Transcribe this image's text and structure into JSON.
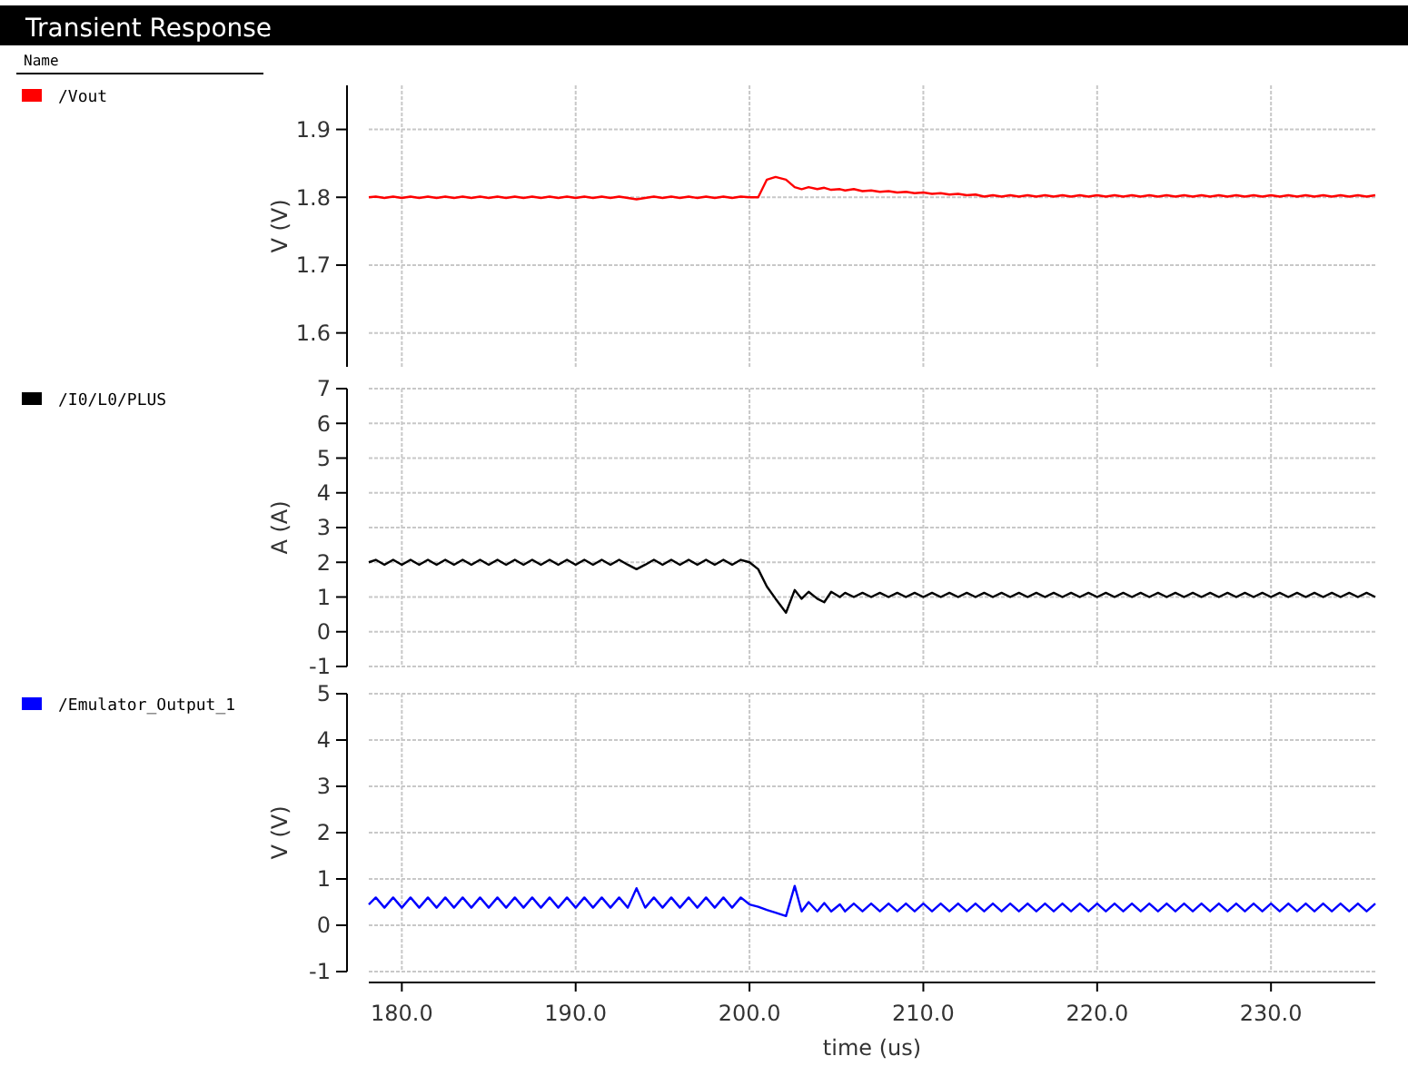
{
  "chart_data": [
    {
      "type": "line",
      "title": "Transient Response",
      "legend_title": "Name",
      "ylabel": "V (V)",
      "legend": "left",
      "grid": true,
      "tick_labels": "y",
      "xlim": [
        178.1,
        236
      ],
      "xticks": [
        180,
        190,
        200,
        210,
        220,
        230
      ],
      "ylim": [
        1.55,
        1.965
      ],
      "yticks": [
        1.6,
        1.7,
        1.8,
        1.9
      ],
      "x": [
        178.1,
        178.5,
        179,
        179.5,
        180,
        180.5,
        181,
        181.5,
        182,
        182.5,
        183,
        183.5,
        184,
        184.5,
        185,
        185.5,
        186,
        186.5,
        187,
        187.5,
        188,
        188.5,
        189,
        189.5,
        190,
        190.5,
        191,
        191.5,
        192,
        192.5,
        193,
        193.5,
        194,
        194.5,
        195,
        195.5,
        196,
        196.5,
        197,
        197.5,
        198,
        198.5,
        199,
        199.5,
        200,
        200.5,
        201,
        201.5,
        202.1,
        202.6,
        203,
        203.4,
        203.9,
        204.3,
        204.7,
        205.2,
        205.5,
        206,
        206.5,
        207,
        207.5,
        208,
        208.5,
        209,
        209.5,
        210,
        210.5,
        211,
        211.5,
        212,
        212.5,
        213,
        213.5,
        214,
        214.5,
        215,
        215.5,
        216,
        216.5,
        217,
        217.5,
        218,
        218.5,
        219,
        219.5,
        220,
        220.5,
        221,
        221.5,
        222,
        222.5,
        223,
        223.5,
        224,
        224.5,
        225,
        225.5,
        226,
        226.5,
        227,
        227.5,
        228,
        228.5,
        229,
        229.5,
        230,
        230.5,
        231,
        231.5,
        232,
        232.5,
        233,
        233.5,
        234,
        234.5,
        235,
        235.5,
        236
      ],
      "series": [
        {
          "name": "/Vout",
          "color": "#ff0000",
          "values": [
            1.8,
            1.801,
            1.799,
            1.801,
            1.799,
            1.801,
            1.799,
            1.801,
            1.799,
            1.801,
            1.799,
            1.801,
            1.799,
            1.801,
            1.799,
            1.801,
            1.799,
            1.801,
            1.799,
            1.801,
            1.799,
            1.801,
            1.799,
            1.801,
            1.799,
            1.801,
            1.799,
            1.801,
            1.799,
            1.801,
            1.799,
            1.797,
            1.799,
            1.801,
            1.799,
            1.801,
            1.799,
            1.801,
            1.799,
            1.801,
            1.799,
            1.801,
            1.799,
            1.801,
            1.8,
            1.8,
            1.826,
            1.83,
            1.826,
            1.815,
            1.812,
            1.815,
            1.812,
            1.814,
            1.811,
            1.812,
            1.81,
            1.812,
            1.809,
            1.81,
            1.808,
            1.809,
            1.807,
            1.808,
            1.806,
            1.807,
            1.805,
            1.806,
            1.804,
            1.805,
            1.803,
            1.804,
            1.801,
            1.803,
            1.801,
            1.803,
            1.801,
            1.803,
            1.801,
            1.803,
            1.801,
            1.803,
            1.801,
            1.803,
            1.801,
            1.803,
            1.801,
            1.803,
            1.801,
            1.803,
            1.801,
            1.803,
            1.801,
            1.803,
            1.801,
            1.803,
            1.801,
            1.803,
            1.801,
            1.803,
            1.801,
            1.803,
            1.801,
            1.803,
            1.801,
            1.803,
            1.801,
            1.803,
            1.801,
            1.803,
            1.801,
            1.803,
            1.801,
            1.803,
            1.801,
            1.803,
            1.801,
            1.803
          ]
        }
      ]
    },
    {
      "type": "line",
      "ylabel": "A (A)",
      "legend": "left",
      "grid": true,
      "tick_labels": "y",
      "xlim": [
        178.1,
        236
      ],
      "xticks": [
        180,
        190,
        200,
        210,
        220,
        230
      ],
      "ylim": [
        -1,
        7
      ],
      "yticks": [
        -1,
        0,
        1,
        2,
        3,
        4,
        5,
        6,
        7
      ],
      "x": [
        178.1,
        178.5,
        179,
        179.5,
        180,
        180.5,
        181,
        181.5,
        182,
        182.5,
        183,
        183.5,
        184,
        184.5,
        185,
        185.5,
        186,
        186.5,
        187,
        187.5,
        188,
        188.5,
        189,
        189.5,
        190,
        190.5,
        191,
        191.5,
        192,
        192.5,
        193,
        193.5,
        194,
        194.5,
        195,
        195.5,
        196,
        196.5,
        197,
        197.5,
        198,
        198.5,
        199,
        199.5,
        200,
        200.5,
        201,
        201.5,
        202.1,
        202.6,
        203,
        203.4,
        203.9,
        204.3,
        204.7,
        205.2,
        205.5,
        206,
        206.5,
        207,
        207.5,
        208,
        208.5,
        209,
        209.5,
        210,
        210.5,
        211,
        211.5,
        212,
        212.5,
        213,
        213.5,
        214,
        214.5,
        215,
        215.5,
        216,
        216.5,
        217,
        217.5,
        218,
        218.5,
        219,
        219.5,
        220,
        220.5,
        221,
        221.5,
        222,
        222.5,
        223,
        223.5,
        224,
        224.5,
        225,
        225.5,
        226,
        226.5,
        227,
        227.5,
        228,
        228.5,
        229,
        229.5,
        230,
        230.5,
        231,
        231.5,
        232,
        232.5,
        233,
        233.5,
        234,
        234.5,
        235,
        235.5,
        236
      ],
      "series": [
        {
          "name": "/I0/L0/PLUS",
          "color": "#000000",
          "values": [
            2.0,
            2.07,
            1.93,
            2.07,
            1.93,
            2.07,
            1.93,
            2.07,
            1.93,
            2.07,
            1.93,
            2.07,
            1.93,
            2.07,
            1.93,
            2.07,
            1.93,
            2.07,
            1.93,
            2.07,
            1.93,
            2.07,
            1.93,
            2.07,
            1.93,
            2.07,
            1.93,
            2.07,
            1.93,
            2.07,
            1.93,
            1.8,
            1.93,
            2.07,
            1.93,
            2.07,
            1.93,
            2.07,
            1.93,
            2.07,
            1.93,
            2.07,
            1.93,
            2.07,
            2.0,
            1.8,
            1.3,
            0.95,
            0.55,
            1.2,
            0.95,
            1.15,
            0.95,
            0.85,
            1.15,
            1.0,
            1.12,
            1.0,
            1.12,
            1.0,
            1.12,
            1.0,
            1.12,
            1.0,
            1.12,
            1.0,
            1.12,
            1.0,
            1.12,
            1.0,
            1.12,
            1.0,
            1.12,
            1.0,
            1.12,
            1.0,
            1.12,
            1.0,
            1.12,
            1.0,
            1.12,
            1.0,
            1.12,
            1.0,
            1.12,
            1.0,
            1.12,
            1.0,
            1.12,
            1.0,
            1.12,
            1.0,
            1.12,
            1.0,
            1.12,
            1.0,
            1.12,
            1.0,
            1.12,
            1.0,
            1.12,
            1.0,
            1.12,
            1.0,
            1.12,
            1.0,
            1.12,
            1.0,
            1.12,
            1.0,
            1.12,
            1.0,
            1.12,
            1.0,
            1.12,
            1.0,
            1.12,
            1.0
          ]
        }
      ]
    },
    {
      "type": "line",
      "xlabel": "time (us)",
      "ylabel": "V (V)",
      "legend": "left",
      "grid": true,
      "xlim": [
        178.1,
        236
      ],
      "xticks": [
        {
          "value": 180,
          "label": "180.0"
        },
        {
          "value": 190,
          "label": "190.0"
        },
        {
          "value": 200,
          "label": "200.0"
        },
        {
          "value": 210,
          "label": "210.0"
        },
        {
          "value": 220,
          "label": "220.0"
        },
        {
          "value": 230,
          "label": "230.0"
        }
      ],
      "ylim": [
        -1,
        5
      ],
      "yticks": [
        -1,
        0,
        1,
        2,
        3,
        4,
        5
      ],
      "x": [
        178.1,
        178.5,
        179,
        179.5,
        180,
        180.5,
        181,
        181.5,
        182,
        182.5,
        183,
        183.5,
        184,
        184.5,
        185,
        185.5,
        186,
        186.5,
        187,
        187.5,
        188,
        188.5,
        189,
        189.5,
        190,
        190.5,
        191,
        191.5,
        192,
        192.5,
        193,
        193.5,
        194,
        194.5,
        195,
        195.5,
        196,
        196.5,
        197,
        197.5,
        198,
        198.5,
        199,
        199.5,
        200,
        200.5,
        201,
        201.5,
        202.1,
        202.6,
        203,
        203.4,
        203.9,
        204.3,
        204.7,
        205.2,
        205.5,
        206,
        206.5,
        207,
        207.5,
        208,
        208.5,
        209,
        209.5,
        210,
        210.5,
        211,
        211.5,
        212,
        212.5,
        213,
        213.5,
        214,
        214.5,
        215,
        215.5,
        216,
        216.5,
        217,
        217.5,
        218,
        218.5,
        219,
        219.5,
        220,
        220.5,
        221,
        221.5,
        222,
        222.5,
        223,
        223.5,
        224,
        224.5,
        225,
        225.5,
        226,
        226.5,
        227,
        227.5,
        228,
        228.5,
        229,
        229.5,
        230,
        230.5,
        231,
        231.5,
        232,
        232.5,
        233,
        233.5,
        234,
        234.5,
        235,
        235.5,
        236
      ],
      "series": [
        {
          "name": "/Emulator_Output_1",
          "color": "#0000ff",
          "values": [
            0.45,
            0.6,
            0.38,
            0.6,
            0.38,
            0.6,
            0.38,
            0.6,
            0.38,
            0.6,
            0.38,
            0.6,
            0.38,
            0.6,
            0.38,
            0.6,
            0.38,
            0.6,
            0.38,
            0.6,
            0.38,
            0.6,
            0.38,
            0.6,
            0.38,
            0.6,
            0.38,
            0.6,
            0.38,
            0.6,
            0.38,
            0.8,
            0.38,
            0.6,
            0.38,
            0.6,
            0.38,
            0.6,
            0.38,
            0.6,
            0.38,
            0.6,
            0.38,
            0.6,
            0.45,
            0.4,
            0.33,
            0.27,
            0.2,
            0.85,
            0.3,
            0.5,
            0.3,
            0.48,
            0.3,
            0.45,
            0.3,
            0.47,
            0.3,
            0.47,
            0.3,
            0.47,
            0.3,
            0.47,
            0.3,
            0.47,
            0.3,
            0.47,
            0.3,
            0.47,
            0.3,
            0.47,
            0.3,
            0.47,
            0.3,
            0.47,
            0.3,
            0.47,
            0.3,
            0.47,
            0.3,
            0.47,
            0.3,
            0.47,
            0.3,
            0.47,
            0.3,
            0.47,
            0.3,
            0.47,
            0.3,
            0.47,
            0.3,
            0.47,
            0.3,
            0.47,
            0.3,
            0.47,
            0.3,
            0.47,
            0.3,
            0.47,
            0.3,
            0.47,
            0.3,
            0.47,
            0.3,
            0.47,
            0.3,
            0.47,
            0.3,
            0.47,
            0.3,
            0.47,
            0.3,
            0.47,
            0.3,
            0.47
          ]
        }
      ]
    }
  ]
}
